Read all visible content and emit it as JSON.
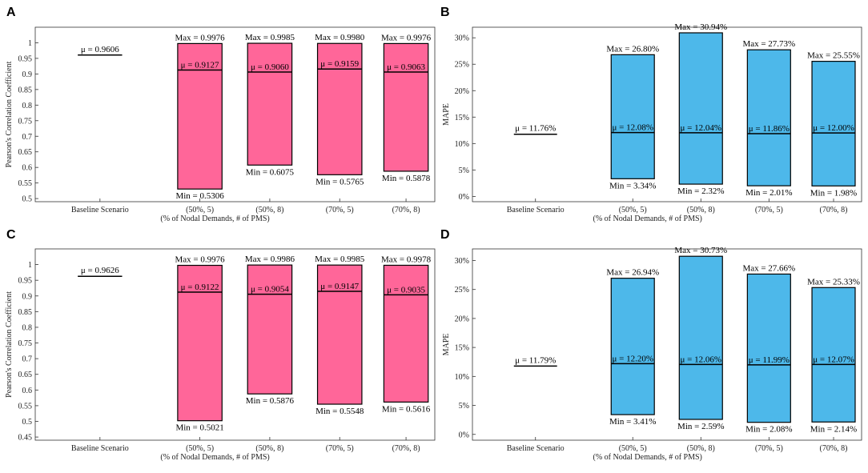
{
  "chart_data": [
    {
      "panel": "A",
      "type": "bar",
      "categories": [
        "Baseline Scenario",
        "(50%, 5)",
        "(50%, 8)",
        "(70%, 5)",
        "(70%, 8)"
      ],
      "xlabel": "(% of Nodal Demands, # of PMS)",
      "ylabel": "Pearson's Correlation Coefficient",
      "ylim": [
        0.49,
        1.05
      ],
      "yticks": [
        0.5,
        0.55,
        0.6,
        0.65,
        0.7,
        0.75,
        0.8,
        0.85,
        0.9,
        0.95,
        1
      ],
      "ytick_labels": [
        "0.5",
        "0.55",
        "0.6",
        "0.65",
        "0.7",
        "0.75",
        "0.8",
        "0.85",
        "0.9",
        "0.95",
        "1"
      ],
      "color": "#ff6699",
      "baseline": {
        "mean": 0.9606,
        "label": "μ = 0.9606"
      },
      "boxes": [
        {
          "category": "(50%, 5)",
          "min": 0.5306,
          "max": 0.9976,
          "mean": 0.9127,
          "min_label": "Min = 0.5306",
          "max_label": "Max = 0.9976",
          "mean_label": "μ = 0.9127"
        },
        {
          "category": "(50%, 8)",
          "min": 0.6075,
          "max": 0.9985,
          "mean": 0.906,
          "min_label": "Min = 0.6075",
          "max_label": "Max = 0.9985",
          "mean_label": "μ = 0.9060"
        },
        {
          "category": "(70%, 5)",
          "min": 0.5765,
          "max": 0.998,
          "mean": 0.9159,
          "min_label": "Min = 0.5765",
          "max_label": "Max = 0.9980",
          "mean_label": "μ = 0.9159"
        },
        {
          "category": "(70%, 8)",
          "min": 0.5878,
          "max": 0.9976,
          "mean": 0.9063,
          "min_label": "Min = 0.5878",
          "max_label": "Max = 0.9976",
          "mean_label": "μ = 0.9063"
        }
      ]
    },
    {
      "panel": "B",
      "type": "bar",
      "categories": [
        "Baseline Scenario",
        "(50%, 5)",
        "(50%, 8)",
        "(70%, 5)",
        "(70%, 8)"
      ],
      "xlabel": "(% of Nodal Demands, # of PMS)",
      "ylabel": "MAPE",
      "ylim": [
        -1,
        32
      ],
      "yticks": [
        0,
        5,
        10,
        15,
        20,
        25,
        30
      ],
      "ytick_labels": [
        "0%",
        "5%",
        "10%",
        "15%",
        "20%",
        "25%",
        "30%"
      ],
      "color": "#4db8ea",
      "baseline": {
        "mean": 11.76,
        "label": "μ = 11.76%"
      },
      "boxes": [
        {
          "category": "(50%, 5)",
          "min": 3.34,
          "max": 26.8,
          "mean": 12.08,
          "min_label": "Min = 3.34%",
          "max_label": "Max = 26.80%",
          "mean_label": "μ = 12.08%"
        },
        {
          "category": "(50%, 8)",
          "min": 2.32,
          "max": 30.94,
          "mean": 12.04,
          "min_label": "Min = 2.32%",
          "max_label": "Max = 30.94%",
          "mean_label": "μ = 12.04%"
        },
        {
          "category": "(70%, 5)",
          "min": 2.01,
          "max": 27.73,
          "mean": 11.86,
          "min_label": "Min = 2.01%",
          "max_label": "Max = 27.73%",
          "mean_label": "μ = 11.86%"
        },
        {
          "category": "(70%, 8)",
          "min": 1.98,
          "max": 25.55,
          "mean": 12.0,
          "min_label": "Min = 1.98%",
          "max_label": "Max = 25.55%",
          "mean_label": "μ = 12.00%"
        }
      ]
    },
    {
      "panel": "C",
      "type": "bar",
      "categories": [
        "Baseline Scenario",
        "(50%, 5)",
        "(50%, 8)",
        "(70%, 5)",
        "(70%, 8)"
      ],
      "xlabel": "(% of Nodal Demands, # of PMS)",
      "ylabel": "Pearson's Correlation Coefficient",
      "ylim": [
        0.44,
        1.05
      ],
      "yticks": [
        0.45,
        0.5,
        0.55,
        0.6,
        0.65,
        0.7,
        0.75,
        0.8,
        0.85,
        0.9,
        0.95,
        1
      ],
      "ytick_labels": [
        "0.45",
        "0.5",
        "0.55",
        "0.6",
        "0.65",
        "0.7",
        "0.75",
        "0.8",
        "0.85",
        "0.9",
        "0.95",
        "1"
      ],
      "color": "#ff6699",
      "baseline": {
        "mean": 0.9626,
        "label": "μ = 0.9626"
      },
      "boxes": [
        {
          "category": "(50%, 5)",
          "min": 0.5021,
          "max": 0.9976,
          "mean": 0.9122,
          "min_label": "Min = 0.5021",
          "max_label": "Max = 0.9976",
          "mean_label": "μ = 0.9122"
        },
        {
          "category": "(50%, 8)",
          "min": 0.5876,
          "max": 0.9986,
          "mean": 0.9054,
          "min_label": "Min = 0.5876",
          "max_label": "Max = 0.9986",
          "mean_label": "μ = 0.9054"
        },
        {
          "category": "(70%, 5)",
          "min": 0.5548,
          "max": 0.9985,
          "mean": 0.9147,
          "min_label": "Min = 0.5548",
          "max_label": "Max = 0.9985",
          "mean_label": "μ = 0.9147"
        },
        {
          "category": "(70%, 8)",
          "min": 0.5616,
          "max": 0.9978,
          "mean": 0.9035,
          "min_label": "Min = 0.5616",
          "max_label": "Max = 0.9978",
          "mean_label": "μ = 0.9035"
        }
      ]
    },
    {
      "panel": "D",
      "type": "bar",
      "categories": [
        "Baseline Scenario",
        "(50%, 5)",
        "(50%, 8)",
        "(70%, 5)",
        "(70%, 8)"
      ],
      "xlabel": "(% of Nodal Demands, # of PMS)",
      "ylabel": "MAPE",
      "ylim": [
        -1,
        32
      ],
      "yticks": [
        0,
        5,
        10,
        15,
        20,
        25,
        30
      ],
      "ytick_labels": [
        "0%",
        "5%",
        "10%",
        "15%",
        "20%",
        "25%",
        "30%"
      ],
      "color": "#4db8ea",
      "baseline": {
        "mean": 11.79,
        "label": "μ = 11.79%"
      },
      "boxes": [
        {
          "category": "(50%, 5)",
          "min": 3.41,
          "max": 26.94,
          "mean": 12.2,
          "min_label": "Min = 3.41%",
          "max_label": "Max = 26.94%",
          "mean_label": "μ = 12.20%"
        },
        {
          "category": "(50%, 8)",
          "min": 2.59,
          "max": 30.73,
          "mean": 12.06,
          "min_label": "Min = 2.59%",
          "max_label": "Max = 30.73%",
          "mean_label": "μ = 12.06%"
        },
        {
          "category": "(70%, 5)",
          "min": 2.08,
          "max": 27.66,
          "mean": 11.99,
          "min_label": "Min = 2.08%",
          "max_label": "Max = 27.66%",
          "mean_label": "μ = 11.99%"
        },
        {
          "category": "(70%, 8)",
          "min": 2.14,
          "max": 25.33,
          "mean": 12.07,
          "min_label": "Min = 2.14%",
          "max_label": "Max = 25.33%",
          "mean_label": "μ = 12.07%"
        }
      ]
    }
  ]
}
